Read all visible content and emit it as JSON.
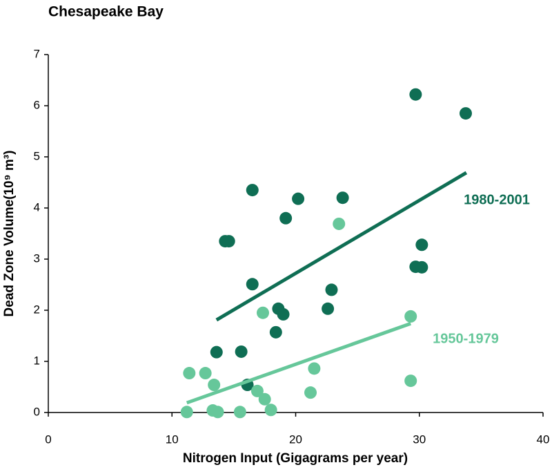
{
  "chart_data": {
    "type": "scatter",
    "title": "Chesapeake  Bay",
    "x_label": "Nitrogen Input (Gigagrams per year)",
    "y_label": "Dead Zone Volume(10⁹ m³)",
    "xlim": [
      0,
      40
    ],
    "xticks": [
      0,
      10,
      20,
      30,
      40
    ],
    "ylim": [
      0,
      7
    ],
    "yticks": [
      0,
      1,
      2,
      3,
      4,
      5,
      6,
      7
    ],
    "grid": false,
    "series": [
      {
        "name": "1980-2001",
        "color": "#0f6e54",
        "x": [
          29.7,
          33.75,
          16.5,
          20.2,
          23.8,
          19.2,
          14.3,
          14.6,
          30.2,
          29.7,
          30.2,
          16.5,
          22.9,
          18.6,
          22.6,
          19.0,
          18.4,
          13.6,
          15.6,
          16.1
        ],
        "values": [
          6.22,
          5.85,
          4.35,
          4.18,
          4.2,
          3.8,
          3.35,
          3.35,
          3.28,
          2.85,
          2.84,
          2.51,
          2.4,
          2.03,
          2.03,
          1.92,
          1.57,
          1.18,
          1.19,
          0.54
        ],
        "trend": {
          "x": [
            13.6,
            33.8
          ],
          "values": [
            1.81,
            4.69
          ]
        }
      },
      {
        "name": "1950-1979",
        "color": "#66c79a",
        "x": [
          23.5,
          17.35,
          29.3,
          21.5,
          11.4,
          12.7,
          13.4,
          16.9,
          21.2,
          17.5,
          29.3,
          11.2,
          13.3,
          13.7,
          15.5,
          18.0
        ],
        "values": [
          3.69,
          1.95,
          1.88,
          0.86,
          0.77,
          0.77,
          0.54,
          0.42,
          0.39,
          0.26,
          0.62,
          0.01,
          0.04,
          0.01,
          0.01,
          0.05
        ],
        "trend": {
          "x": [
            11.2,
            29.3
          ],
          "values": [
            0.19,
            1.74
          ]
        }
      }
    ]
  }
}
